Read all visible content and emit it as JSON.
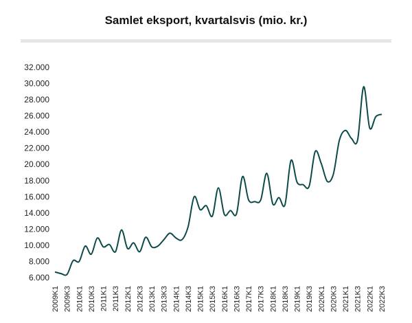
{
  "chart_data": {
    "type": "line",
    "title": "Samlet eksport, kvartalsvis (mio. kr.)",
    "xlabel": "",
    "ylabel": "",
    "ylim": [
      6000,
      32000
    ],
    "yticks": [
      "6.000",
      "8.000",
      "10.000",
      "12.000",
      "14.000",
      "16.000",
      "18.000",
      "20.000",
      "22.000",
      "24.000",
      "26.000",
      "28.000",
      "30.000",
      "32.000"
    ],
    "ytick_values": [
      6000,
      8000,
      10000,
      12000,
      14000,
      16000,
      18000,
      20000,
      22000,
      24000,
      26000,
      28000,
      30000,
      32000
    ],
    "x": [
      "2009K1",
      "2009K2",
      "2009K3",
      "2009K4",
      "2010K1",
      "2010K2",
      "2010K3",
      "2010K4",
      "2011K1",
      "2011K2",
      "2011K3",
      "2011K4",
      "2012K1",
      "2012K2",
      "2012K3",
      "2012K4",
      "2013K1",
      "2013K2",
      "2013K3",
      "2013K4",
      "2014K1",
      "2014K2",
      "2014K3",
      "2014K4",
      "2015K1",
      "2015K2",
      "2015K3",
      "2015K4",
      "2016K1",
      "2016K2",
      "2016K3",
      "2016K4",
      "2017K1",
      "2017K2",
      "2017K3",
      "2017K4",
      "2018K1",
      "2018K2",
      "2018K3",
      "2018K4",
      "2019K1",
      "2019K2",
      "2019K3",
      "2019K4",
      "2020K1",
      "2020K2",
      "2020K3",
      "2020K4",
      "2021K1",
      "2021K2",
      "2021K3",
      "2021K4",
      "2022K1",
      "2022K2",
      "2022K3"
    ],
    "xtick_labels": [
      "2009K1",
      "2009K3",
      "2010K1",
      "2010K3",
      "2011K1",
      "2011K3",
      "2012K1",
      "2012K3",
      "2013K1",
      "2013K3",
      "2014K1",
      "2014K3",
      "2015K1",
      "2015K3",
      "2016K1",
      "2016K3",
      "2017K1",
      "2017K3",
      "2018K1",
      "2018K3",
      "2019K1",
      "2019K3",
      "2020K1",
      "2020K3",
      "2021K1",
      "2021K3",
      "2022K1",
      "2022K3"
    ],
    "series": [
      {
        "name": "",
        "color": "#0b4a4a",
        "values": [
          6700,
          6500,
          6400,
          8100,
          8000,
          9900,
          8900,
          10900,
          9800,
          10100,
          9200,
          11900,
          9600,
          10300,
          9200,
          11000,
          9800,
          9900,
          10700,
          11500,
          10900,
          10700,
          12300,
          16000,
          14400,
          14900,
          13600,
          17100,
          13800,
          14300,
          13900,
          18500,
          15600,
          15400,
          15600,
          18900,
          15100,
          15900,
          15000,
          20500,
          17800,
          17500,
          17300,
          21600,
          20100,
          17900,
          18800,
          23000,
          24200,
          23200,
          23000,
          29600,
          24500,
          25900,
          26200
        ]
      }
    ]
  }
}
